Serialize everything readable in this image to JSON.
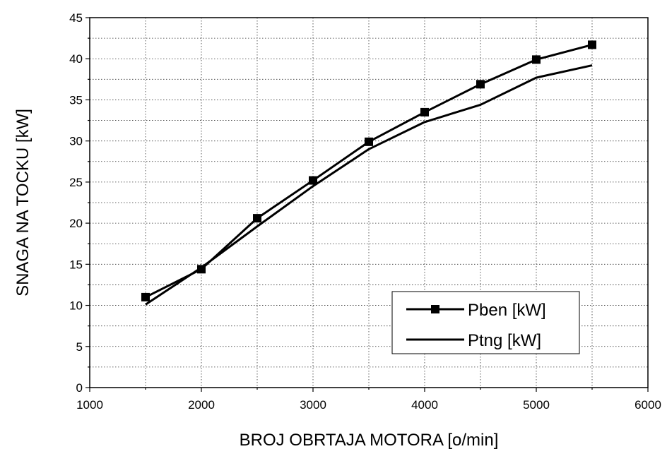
{
  "chart_data": {
    "type": "line",
    "title": "",
    "xlabel": "BROJ OBRTAJA MOTORA [o/min]",
    "ylabel": "SNAGA NA TOCKU [kW]",
    "xlim": [
      1000,
      6000
    ],
    "ylim": [
      0,
      45
    ],
    "x_ticks": [
      1000,
      2000,
      3000,
      4000,
      5000,
      6000
    ],
    "y_ticks": [
      0,
      5,
      10,
      15,
      20,
      25,
      30,
      35,
      40,
      45
    ],
    "grid": true,
    "legend_position": "bottom-right",
    "x": [
      1500,
      2000,
      2500,
      3000,
      3500,
      4000,
      4500,
      5000,
      5500
    ],
    "series": [
      {
        "name": "Pben [kW]",
        "marker": "square",
        "color": "#000000",
        "values": [
          11.0,
          14.4,
          20.6,
          25.2,
          29.9,
          33.5,
          36.9,
          39.9,
          41.7
        ]
      },
      {
        "name": "Ptng [kW]",
        "marker": "none",
        "color": "#000000",
        "values": [
          10.1,
          14.6,
          19.6,
          24.5,
          29.0,
          32.3,
          34.4,
          37.7,
          39.2
        ]
      }
    ]
  }
}
